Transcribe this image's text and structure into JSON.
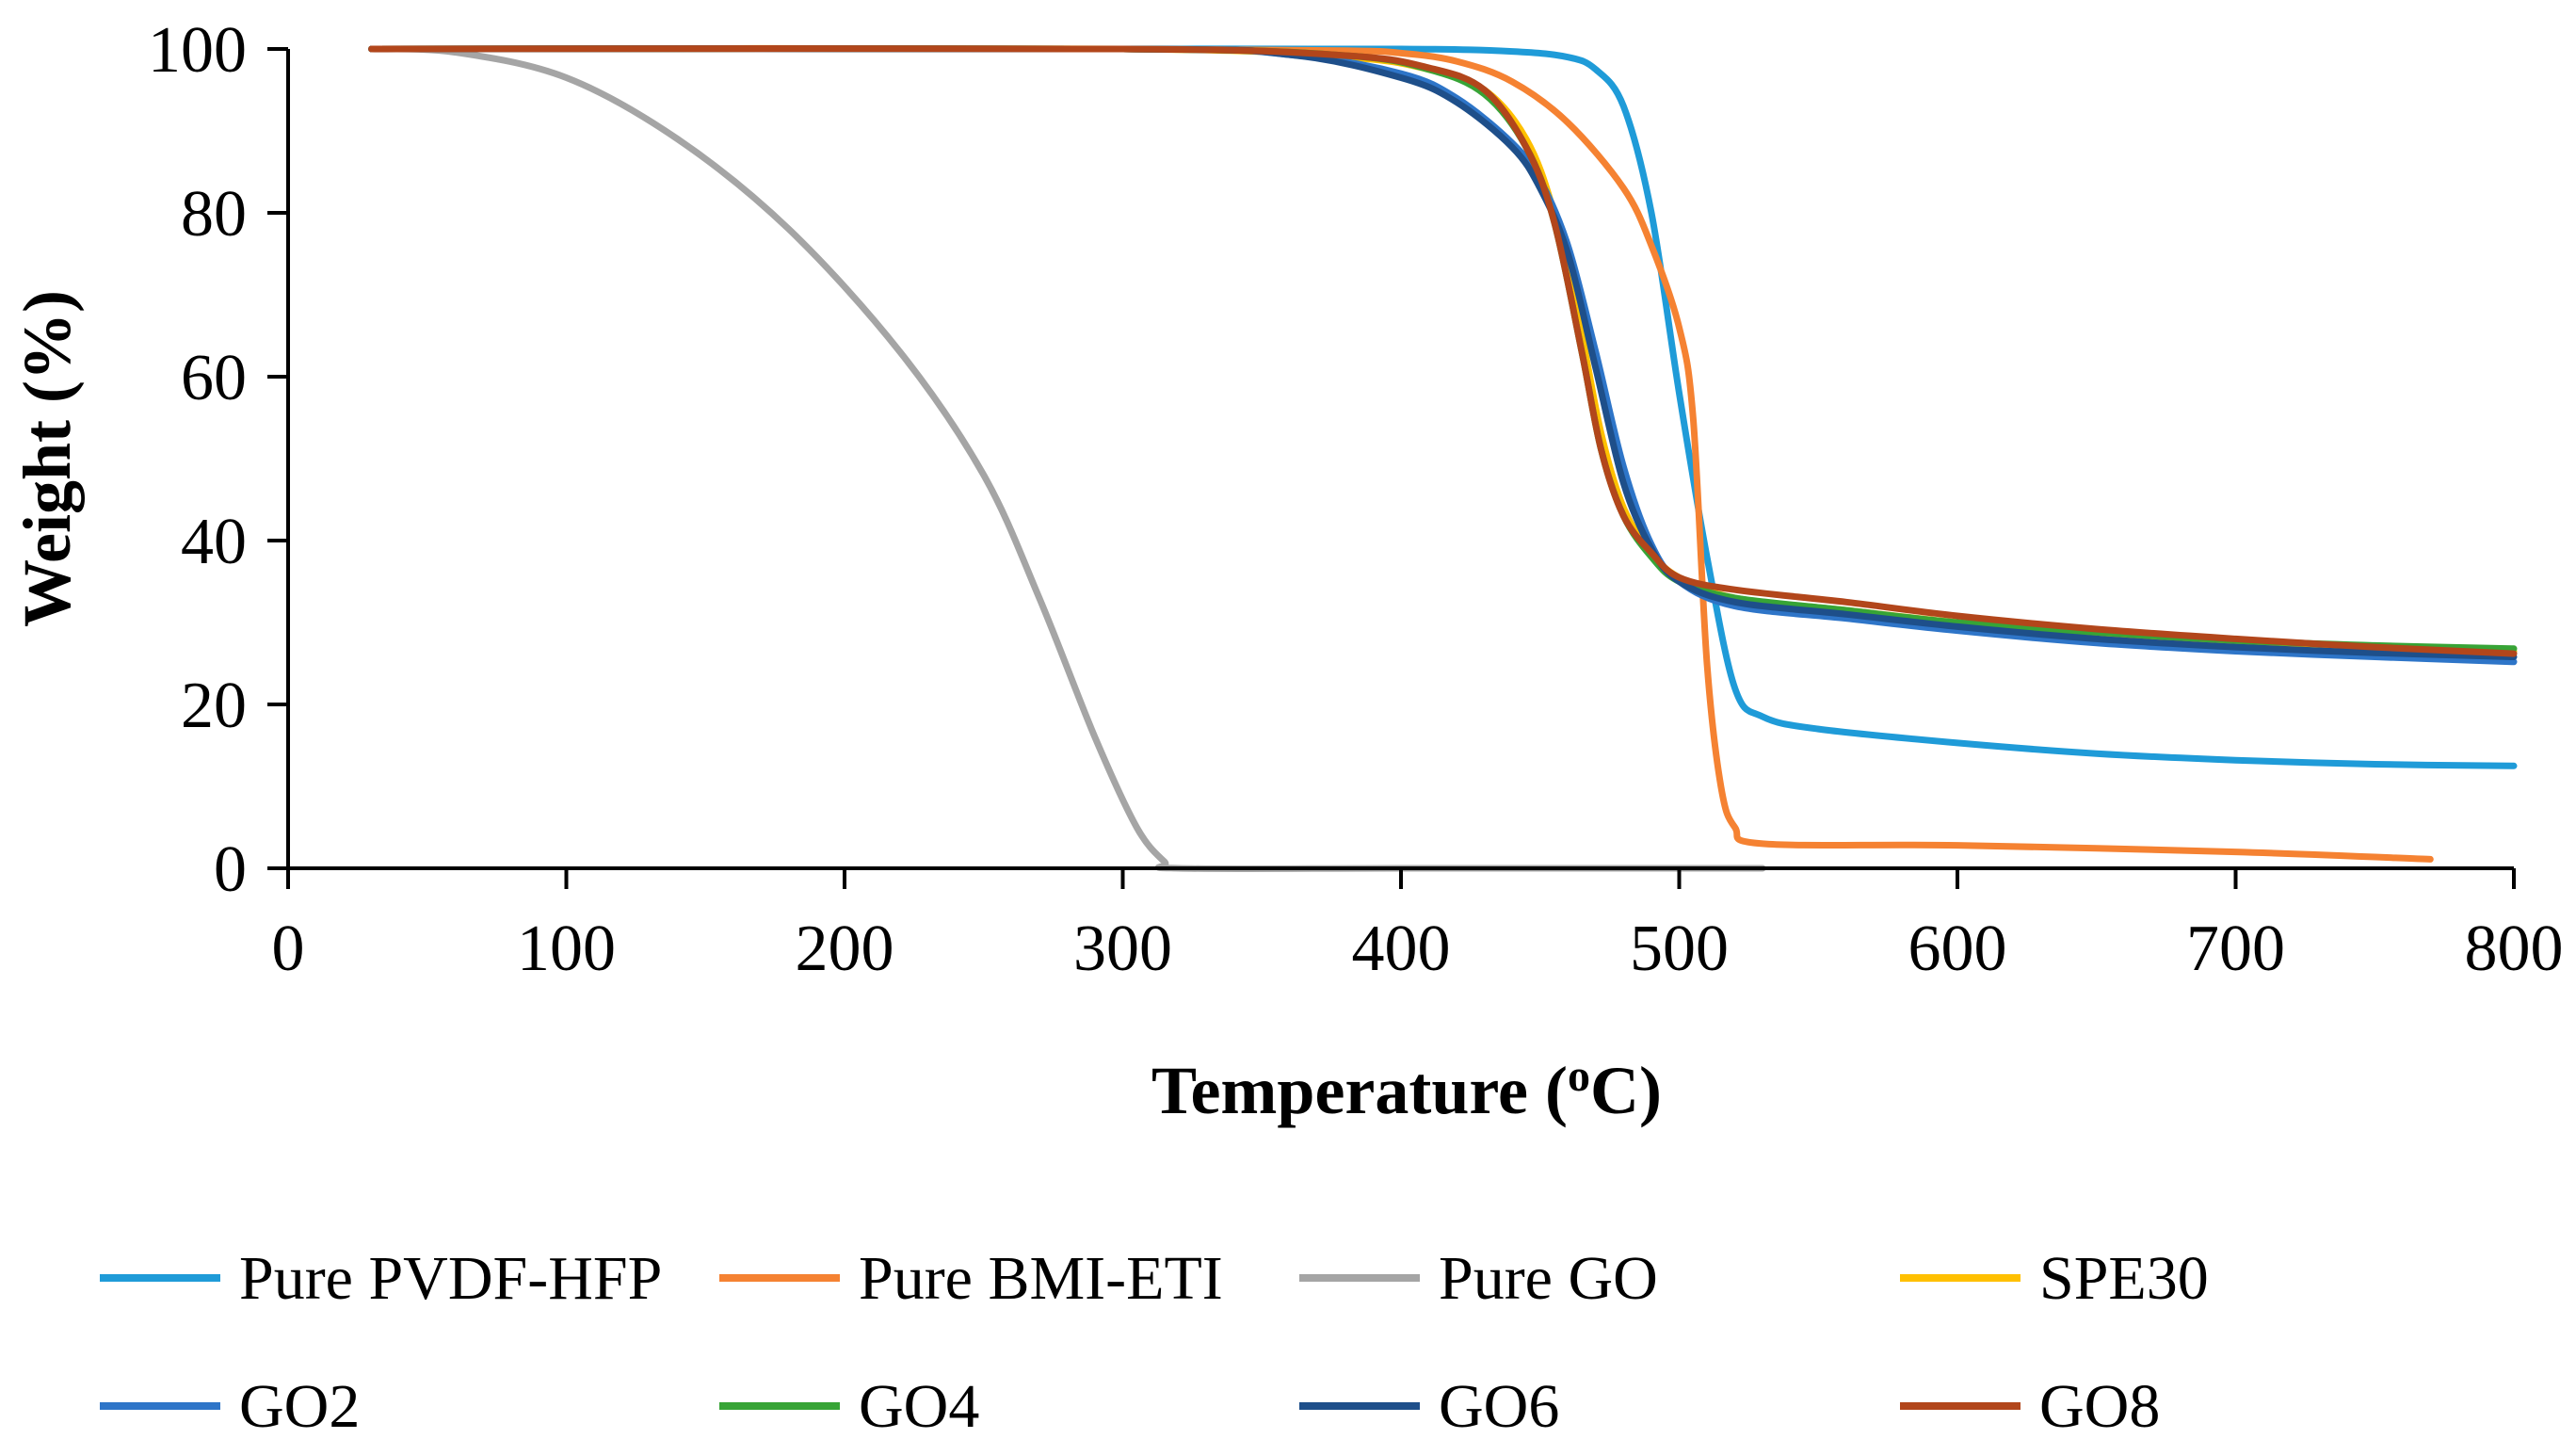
{
  "chart_data": {
    "type": "line",
    "title": "",
    "xlabel": "Temperature (",
    "xlabel_sup": "o",
    "xlabel_tail": "C)",
    "ylabel": "Weight (%)",
    "xlim": [
      0,
      800
    ],
    "ylim": [
      0,
      100
    ],
    "x_ticks": [
      0,
      100,
      200,
      300,
      400,
      500,
      600,
      700,
      800
    ],
    "x_tick_labels": [
      "0",
      "100",
      "200",
      "300",
      "400",
      "500",
      "600",
      "700",
      "800"
    ],
    "y_ticks": [
      0,
      20,
      40,
      60,
      80,
      100
    ],
    "y_tick_labels": [
      "0",
      "20",
      "40",
      "60",
      "80",
      "100"
    ],
    "grid": false,
    "legend_position": "bottom",
    "series": [
      {
        "name": "Pure PVDF-HFP",
        "color": "#1f9bd8",
        "points": [
          [
            30,
            100
          ],
          [
            100,
            100
          ],
          [
            200,
            100
          ],
          [
            300,
            100
          ],
          [
            400,
            100
          ],
          [
            440,
            99.7
          ],
          [
            460,
            99
          ],
          [
            470,
            97.5
          ],
          [
            480,
            93
          ],
          [
            490,
            80
          ],
          [
            500,
            58
          ],
          [
            510,
            38
          ],
          [
            520,
            22
          ],
          [
            530,
            18.5
          ],
          [
            550,
            17
          ],
          [
            600,
            15.3
          ],
          [
            650,
            14
          ],
          [
            700,
            13.2
          ],
          [
            750,
            12.7
          ],
          [
            800,
            12.5
          ]
        ]
      },
      {
        "name": "Pure BMI-ETI",
        "color": "#f58232",
        "points": [
          [
            30,
            100
          ],
          [
            100,
            100
          ],
          [
            200,
            100
          ],
          [
            300,
            100
          ],
          [
            380,
            99.8
          ],
          [
            400,
            99.5
          ],
          [
            420,
            98.5
          ],
          [
            440,
            96
          ],
          [
            460,
            91
          ],
          [
            480,
            83
          ],
          [
            490,
            76
          ],
          [
            500,
            66
          ],
          [
            505,
            55
          ],
          [
            510,
            25
          ],
          [
            515,
            10
          ],
          [
            520,
            5
          ],
          [
            530,
            3
          ],
          [
            600,
            2.8
          ],
          [
            700,
            2
          ],
          [
            770,
            1.1
          ]
        ]
      },
      {
        "name": "Pure GO",
        "color": "#a5a5a5",
        "points": [
          [
            30,
            100
          ],
          [
            60,
            99.6
          ],
          [
            100,
            96.5
          ],
          [
            140,
            89
          ],
          [
            180,
            78
          ],
          [
            220,
            63
          ],
          [
            250,
            48
          ],
          [
            270,
            33
          ],
          [
            290,
            16
          ],
          [
            305,
            5
          ],
          [
            315,
            0.8
          ],
          [
            320,
            0
          ],
          [
            400,
            0
          ],
          [
            500,
            0
          ],
          [
            530,
            0
          ]
        ]
      },
      {
        "name": "SPE30",
        "color": "#ffc000",
        "points": [
          [
            30,
            100
          ],
          [
            300,
            100
          ],
          [
            380,
            99
          ],
          [
            410,
            97.5
          ],
          [
            430,
            95
          ],
          [
            445,
            89
          ],
          [
            455,
            80
          ],
          [
            465,
            65
          ],
          [
            472,
            53
          ],
          [
            480,
            44
          ],
          [
            490,
            38.5
          ],
          [
            500,
            35.5
          ],
          [
            520,
            33
          ],
          [
            560,
            31.5
          ],
          [
            600,
            30
          ],
          [
            650,
            28.5
          ],
          [
            700,
            27.5
          ],
          [
            750,
            27
          ],
          [
            800,
            26.5
          ]
        ]
      },
      {
        "name": "GO2",
        "color": "#2e75c8",
        "points": [
          [
            30,
            100
          ],
          [
            300,
            100
          ],
          [
            360,
            99.3
          ],
          [
            400,
            97
          ],
          [
            420,
            94
          ],
          [
            440,
            88.5
          ],
          [
            450,
            84
          ],
          [
            460,
            76
          ],
          [
            470,
            63
          ],
          [
            480,
            49
          ],
          [
            490,
            39.5
          ],
          [
            500,
            35
          ],
          [
            520,
            32
          ],
          [
            560,
            30.5
          ],
          [
            600,
            29
          ],
          [
            650,
            27.5
          ],
          [
            700,
            26.5
          ],
          [
            750,
            25.8
          ],
          [
            800,
            25.2
          ]
        ]
      },
      {
        "name": "GO4",
        "color": "#37a436",
        "points": [
          [
            30,
            100
          ],
          [
            300,
            100
          ],
          [
            380,
            99.2
          ],
          [
            410,
            97.5
          ],
          [
            430,
            94.5
          ],
          [
            445,
            88
          ],
          [
            455,
            79
          ],
          [
            465,
            63
          ],
          [
            472,
            51
          ],
          [
            480,
            43
          ],
          [
            490,
            38
          ],
          [
            500,
            35
          ],
          [
            520,
            33
          ],
          [
            560,
            31.5
          ],
          [
            600,
            30
          ],
          [
            650,
            28.8
          ],
          [
            700,
            27.8
          ],
          [
            750,
            27.2
          ],
          [
            800,
            26.8
          ]
        ]
      },
      {
        "name": "GO6",
        "color": "#1e4f8a",
        "points": [
          [
            30,
            100
          ],
          [
            300,
            100
          ],
          [
            360,
            99.3
          ],
          [
            400,
            96.5
          ],
          [
            420,
            93.5
          ],
          [
            440,
            88
          ],
          [
            450,
            83
          ],
          [
            460,
            75
          ],
          [
            470,
            61
          ],
          [
            480,
            47
          ],
          [
            490,
            39
          ],
          [
            500,
            35
          ],
          [
            520,
            32.5
          ],
          [
            560,
            31
          ],
          [
            600,
            29.5
          ],
          [
            650,
            28
          ],
          [
            700,
            27
          ],
          [
            750,
            26.3
          ],
          [
            800,
            25.8
          ]
        ]
      },
      {
        "name": "GO8",
        "color": "#b2461b",
        "points": [
          [
            30,
            100
          ],
          [
            300,
            100
          ],
          [
            380,
            99.2
          ],
          [
            410,
            97.7
          ],
          [
            430,
            95
          ],
          [
            445,
            88
          ],
          [
            455,
            79
          ],
          [
            465,
            63
          ],
          [
            472,
            51
          ],
          [
            480,
            43
          ],
          [
            490,
            38.5
          ],
          [
            500,
            35.5
          ],
          [
            520,
            34
          ],
          [
            560,
            32.5
          ],
          [
            600,
            30.8
          ],
          [
            650,
            29.2
          ],
          [
            700,
            28
          ],
          [
            750,
            27
          ],
          [
            800,
            26.2
          ]
        ]
      }
    ]
  }
}
